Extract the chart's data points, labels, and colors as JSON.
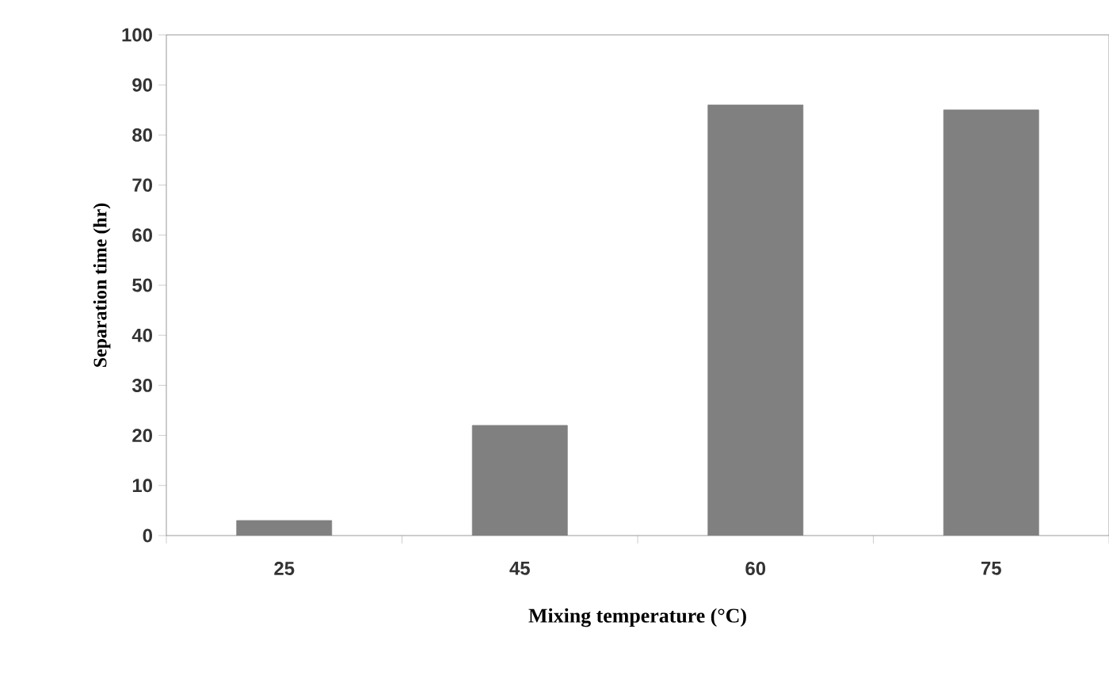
{
  "chart_data": {
    "type": "bar",
    "xlabel": "Mixing temperature (°C)",
    "ylabel": "Separation time (hr)",
    "categories": [
      "25",
      "45",
      "60",
      "75"
    ],
    "values": [
      3,
      22,
      86,
      85
    ],
    "color": "#808080",
    "ylim": [
      0,
      100
    ],
    "yticks": [
      0,
      10,
      20,
      30,
      40,
      50,
      60,
      70,
      80,
      90,
      100
    ]
  }
}
